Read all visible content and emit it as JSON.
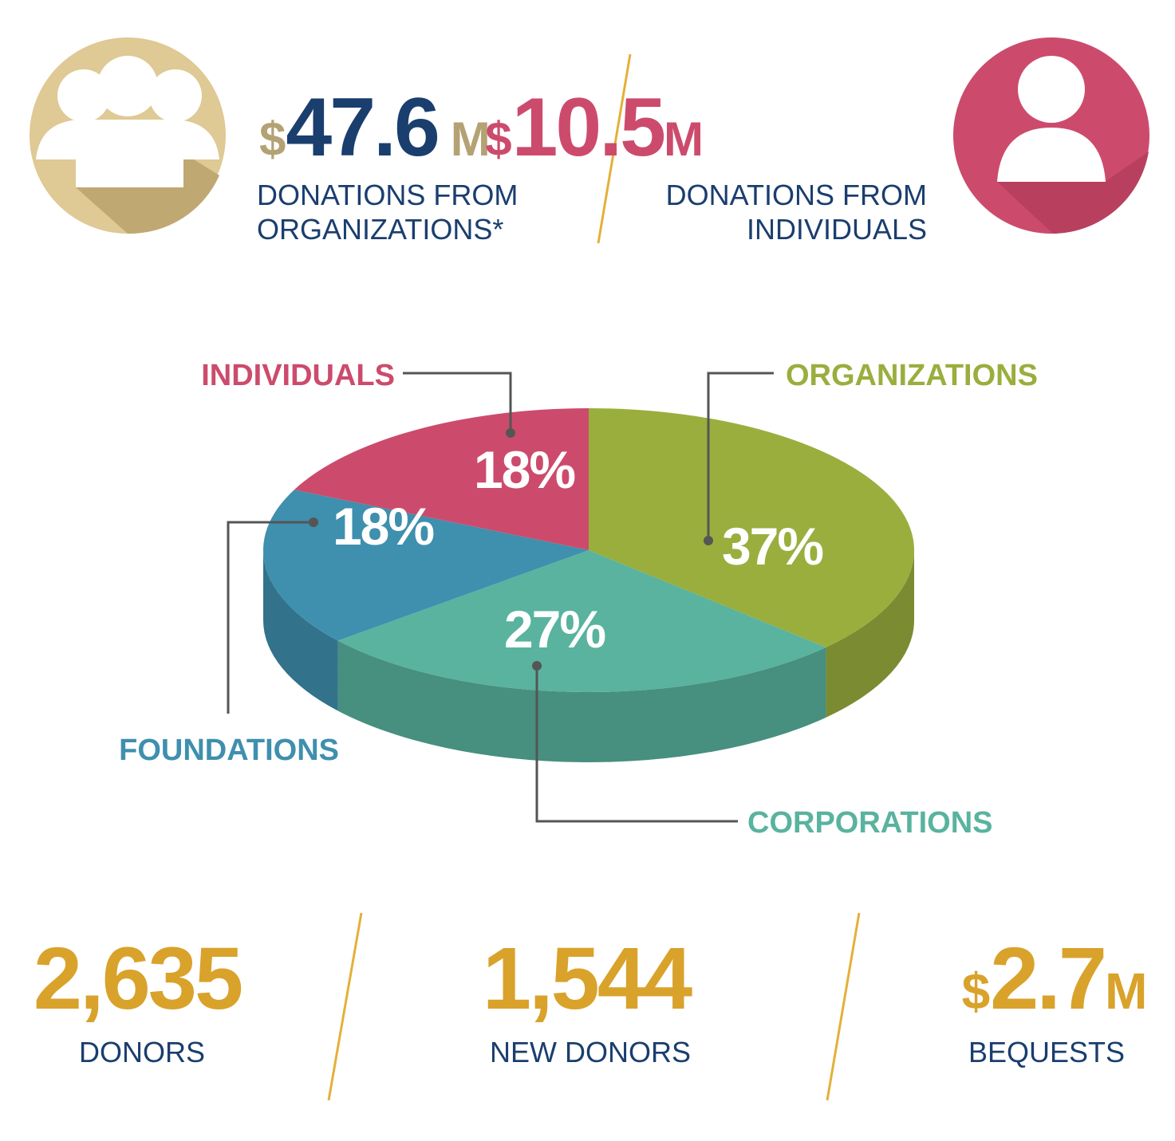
{
  "top_stats": [
    {
      "prefix": "$",
      "number": "47.6",
      "suffix": "M",
      "label_lines": [
        "DONATIONS FROM",
        "ORGANIZATIONS*"
      ]
    },
    {
      "prefix": "$",
      "number": "10.5",
      "suffix": "M",
      "label_lines": [
        "DONATIONS FROM",
        "INDIVIDUALS"
      ]
    }
  ],
  "chart_data": {
    "type": "pie",
    "categories": [
      "ORGANIZATIONS",
      "CORPORATIONS",
      "FOUNDATIONS",
      "INDIVIDUALS"
    ],
    "values": [
      37,
      27,
      18,
      18
    ],
    "value_labels": [
      "37%",
      "27%",
      "18%",
      "18%"
    ],
    "colors": [
      "#9aae3e",
      "#59b39e",
      "#3f8fae",
      "#cc4b6c"
    ]
  },
  "bottom_stats": [
    {
      "number": "2,635",
      "label": "DONORS"
    },
    {
      "number": "1,544",
      "label": "NEW DONORS"
    },
    {
      "prefix": "$",
      "number": "2.7",
      "suffix": "M",
      "label": "BEQUESTS"
    }
  ]
}
